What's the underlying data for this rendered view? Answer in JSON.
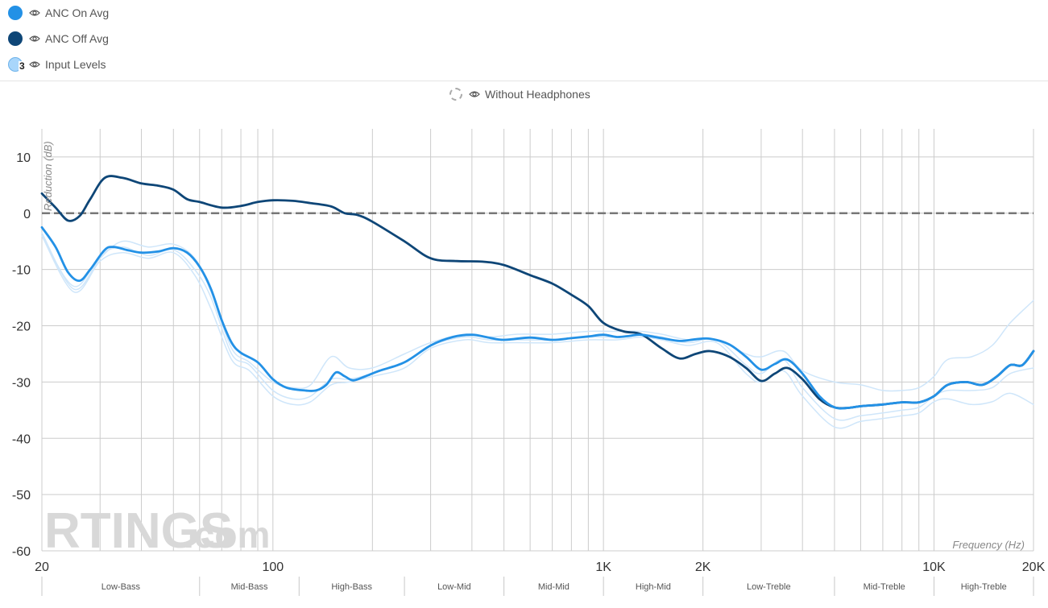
{
  "legend": {
    "items": [
      {
        "label": "ANC On Avg",
        "color": "#2391e6"
      },
      {
        "label": "ANC Off Avg",
        "color": "#0e4677"
      },
      {
        "label": "Input Levels",
        "color": "#a9d6fb",
        "count": "3"
      }
    ],
    "reference": {
      "label": "Without Headphones"
    }
  },
  "watermark": {
    "main": "RTINGS",
    "suffix": ".com"
  },
  "chart_data": {
    "type": "line",
    "title": "",
    "xlabel": "Frequency (Hz)",
    "ylabel": "Reduction (dB)",
    "xscale": "log",
    "xlim": [
      20,
      20000
    ],
    "ylim": [
      -60,
      15
    ],
    "grid": true,
    "x_ticks": [
      {
        "value": 20,
        "label": "20"
      },
      {
        "value": 100,
        "label": "100"
      },
      {
        "value": 1000,
        "label": "1K"
      },
      {
        "value": 2000,
        "label": "2K"
      },
      {
        "value": 10000,
        "label": "10K"
      },
      {
        "value": 20000,
        "label": "20K"
      }
    ],
    "y_ticks": [
      10,
      0,
      -10,
      -20,
      -30,
      -40,
      -50,
      -60
    ],
    "bands": [
      {
        "label": "Low-Bass",
        "from": 20,
        "to": 60
      },
      {
        "label": "Mid-Bass",
        "from": 60,
        "to": 120
      },
      {
        "label": "High-Bass",
        "from": 120,
        "to": 250
      },
      {
        "label": "Low-Mid",
        "from": 250,
        "to": 500
      },
      {
        "label": "Mid-Mid",
        "from": 500,
        "to": 1000
      },
      {
        "label": "High-Mid",
        "from": 1000,
        "to": 2000
      },
      {
        "label": "Low-Treble",
        "from": 2000,
        "to": 5000
      },
      {
        "label": "Mid-Treble",
        "from": 5000,
        "to": 10000
      },
      {
        "label": "High-Treble",
        "from": 10000,
        "to": 20000
      }
    ],
    "series": [
      {
        "name": "Without Headphones",
        "color": "#777777",
        "style": "dashed",
        "width": 2.5,
        "points": [
          [
            20,
            0
          ],
          [
            20000,
            0
          ]
        ]
      },
      {
        "name": "Input Level 1",
        "color": "#cfe6fa",
        "style": "solid",
        "width": 1.5,
        "points": [
          [
            20,
            -3.5
          ],
          [
            25,
            -13.5
          ],
          [
            30,
            -8
          ],
          [
            35,
            -5
          ],
          [
            42,
            -6
          ],
          [
            50,
            -5.5
          ],
          [
            58,
            -8
          ],
          [
            65,
            -14
          ],
          [
            75,
            -24
          ],
          [
            85,
            -26.5
          ],
          [
            100,
            -30
          ],
          [
            115,
            -31
          ],
          [
            130,
            -30.5
          ],
          [
            150,
            -25.5
          ],
          [
            170,
            -27.5
          ],
          [
            200,
            -27.5
          ],
          [
            250,
            -25
          ],
          [
            300,
            -23
          ],
          [
            380,
            -21.5
          ],
          [
            450,
            -22
          ],
          [
            550,
            -21.5
          ],
          [
            700,
            -21.5
          ],
          [
            900,
            -21
          ],
          [
            1100,
            -21
          ],
          [
            1300,
            -21
          ],
          [
            1500,
            -21.5
          ],
          [
            1800,
            -22.5
          ],
          [
            2200,
            -22.5
          ],
          [
            2700,
            -25
          ],
          [
            3000,
            -25.5
          ],
          [
            3500,
            -24.5
          ],
          [
            4000,
            -28
          ],
          [
            5000,
            -30
          ],
          [
            6000,
            -30.5
          ],
          [
            7000,
            -31.5
          ],
          [
            8000,
            -31.5
          ],
          [
            9000,
            -31
          ],
          [
            10000,
            -29
          ],
          [
            11000,
            -26
          ],
          [
            13000,
            -25.5
          ],
          [
            15000,
            -23.5
          ],
          [
            17000,
            -19.5
          ],
          [
            20000,
            -15.5
          ]
        ]
      },
      {
        "name": "Input Level 2",
        "color": "#cfe6fa",
        "style": "solid",
        "width": 1.5,
        "points": [
          [
            20,
            -4
          ],
          [
            25,
            -13
          ],
          [
            30,
            -7.5
          ],
          [
            35,
            -6
          ],
          [
            42,
            -7.5
          ],
          [
            50,
            -6.5
          ],
          [
            58,
            -10
          ],
          [
            65,
            -15
          ],
          [
            75,
            -25
          ],
          [
            85,
            -27
          ],
          [
            100,
            -31.5
          ],
          [
            115,
            -33
          ],
          [
            130,
            -32.5
          ],
          [
            150,
            -29.5
          ],
          [
            170,
            -29.5
          ],
          [
            200,
            -28.5
          ],
          [
            250,
            -26.5
          ],
          [
            300,
            -23.5
          ],
          [
            380,
            -22
          ],
          [
            450,
            -22.5
          ],
          [
            550,
            -22.5
          ],
          [
            700,
            -22.5
          ],
          [
            900,
            -22
          ],
          [
            1100,
            -22
          ],
          [
            1300,
            -21.5
          ],
          [
            1500,
            -22
          ],
          [
            1800,
            -23
          ],
          [
            2200,
            -22.5
          ],
          [
            2700,
            -27
          ],
          [
            3000,
            -28.5
          ],
          [
            3500,
            -26
          ],
          [
            4000,
            -31
          ],
          [
            5000,
            -36.5
          ],
          [
            6000,
            -36
          ],
          [
            7000,
            -35.5
          ],
          [
            8000,
            -35
          ],
          [
            9000,
            -34.5
          ],
          [
            10000,
            -32.5
          ],
          [
            11000,
            -31.5
          ],
          [
            13000,
            -31.5
          ],
          [
            15000,
            -31
          ],
          [
            17000,
            -28.5
          ],
          [
            20000,
            -27.5
          ]
        ]
      },
      {
        "name": "Input Level 3",
        "color": "#cfe6fa",
        "style": "solid",
        "width": 1.5,
        "points": [
          [
            20,
            -4
          ],
          [
            25,
            -14
          ],
          [
            30,
            -8.5
          ],
          [
            35,
            -7
          ],
          [
            42,
            -8
          ],
          [
            50,
            -7
          ],
          [
            58,
            -11
          ],
          [
            65,
            -17
          ],
          [
            75,
            -26
          ],
          [
            85,
            -28
          ],
          [
            100,
            -32.5
          ],
          [
            115,
            -34
          ],
          [
            130,
            -33.5
          ],
          [
            150,
            -30.5
          ],
          [
            170,
            -30
          ],
          [
            200,
            -29
          ],
          [
            250,
            -27.5
          ],
          [
            300,
            -24
          ],
          [
            380,
            -22.5
          ],
          [
            450,
            -23
          ],
          [
            550,
            -23
          ],
          [
            700,
            -23
          ],
          [
            900,
            -22.5
          ],
          [
            1100,
            -22.5
          ],
          [
            1300,
            -22
          ],
          [
            1500,
            -22.5
          ],
          [
            1800,
            -23.5
          ],
          [
            2200,
            -23
          ],
          [
            2700,
            -28.5
          ],
          [
            3000,
            -30
          ],
          [
            3500,
            -28
          ],
          [
            4000,
            -32.5
          ],
          [
            5000,
            -38
          ],
          [
            6000,
            -37
          ],
          [
            7000,
            -36.5
          ],
          [
            8000,
            -36
          ],
          [
            9000,
            -35.5
          ],
          [
            10000,
            -33.5
          ],
          [
            11000,
            -33
          ],
          [
            13000,
            -34
          ],
          [
            15000,
            -33.5
          ],
          [
            17000,
            -32
          ],
          [
            20000,
            -34
          ]
        ]
      },
      {
        "name": "ANC Off Avg",
        "color": "#0e4677",
        "style": "solid",
        "width": 2.8,
        "points": [
          [
            20,
            3.5
          ],
          [
            22,
            1
          ],
          [
            24,
            -1.3
          ],
          [
            26,
            -0.5
          ],
          [
            28,
            2.5
          ],
          [
            31,
            6.3
          ],
          [
            35,
            6.3
          ],
          [
            40,
            5.3
          ],
          [
            45,
            4.9
          ],
          [
            50,
            4.2
          ],
          [
            55,
            2.5
          ],
          [
            60,
            2
          ],
          [
            70,
            1
          ],
          [
            80,
            1.3
          ],
          [
            90,
            2
          ],
          [
            100,
            2.3
          ],
          [
            115,
            2.2
          ],
          [
            130,
            1.8
          ],
          [
            150,
            1.2
          ],
          [
            165,
            0
          ],
          [
            180,
            -0.3
          ],
          [
            200,
            -1.5
          ],
          [
            250,
            -5
          ],
          [
            300,
            -8
          ],
          [
            360,
            -8.5
          ],
          [
            430,
            -8.6
          ],
          [
            500,
            -9.2
          ],
          [
            600,
            -11
          ],
          [
            700,
            -12.5
          ],
          [
            800,
            -14.5
          ],
          [
            900,
            -16.5
          ],
          [
            1000,
            -19.5
          ],
          [
            1150,
            -21
          ],
          [
            1300,
            -21.5
          ],
          [
            1500,
            -24
          ],
          [
            1700,
            -25.8
          ],
          [
            1900,
            -25
          ],
          [
            2100,
            -24.5
          ],
          [
            2400,
            -25.5
          ],
          [
            2700,
            -27.5
          ],
          [
            3000,
            -29.8
          ],
          [
            3300,
            -28.5
          ],
          [
            3600,
            -27.5
          ],
          [
            4000,
            -29.5
          ],
          [
            4500,
            -33
          ],
          [
            5000,
            -34.5
          ],
          [
            5500,
            -34.6
          ],
          [
            6000,
            -34.3
          ],
          [
            7000,
            -34
          ],
          [
            8000,
            -33.6
          ],
          [
            9000,
            -33.6
          ],
          [
            10000,
            -32.5
          ],
          [
            11000,
            -30.5
          ],
          [
            12500,
            -30
          ],
          [
            14000,
            -30.5
          ],
          [
            15500,
            -29
          ],
          [
            17000,
            -27
          ],
          [
            18500,
            -27
          ],
          [
            20000,
            -24.5
          ]
        ]
      },
      {
        "name": "ANC On Avg",
        "color": "#2391e6",
        "style": "solid",
        "width": 2.8,
        "points": [
          [
            20,
            -2.5
          ],
          [
            22,
            -6
          ],
          [
            24,
            -10.5
          ],
          [
            26,
            -12
          ],
          [
            28,
            -10
          ],
          [
            31,
            -6.5
          ],
          [
            33,
            -6
          ],
          [
            36,
            -6.5
          ],
          [
            40,
            -7
          ],
          [
            45,
            -6.8
          ],
          [
            50,
            -6.2
          ],
          [
            55,
            -7
          ],
          [
            60,
            -9.5
          ],
          [
            65,
            -13.5
          ],
          [
            70,
            -19
          ],
          [
            75,
            -23
          ],
          [
            80,
            -24.8
          ],
          [
            90,
            -26.5
          ],
          [
            100,
            -29.5
          ],
          [
            110,
            -31
          ],
          [
            125,
            -31.5
          ],
          [
            135,
            -31.5
          ],
          [
            145,
            -30.5
          ],
          [
            155,
            -28.3
          ],
          [
            165,
            -29
          ],
          [
            175,
            -29.7
          ],
          [
            190,
            -29
          ],
          [
            210,
            -28
          ],
          [
            250,
            -26.5
          ],
          [
            300,
            -23.5
          ],
          [
            350,
            -22
          ],
          [
            400,
            -21.6
          ],
          [
            450,
            -22.1
          ],
          [
            500,
            -22.5
          ],
          [
            600,
            -22.1
          ],
          [
            700,
            -22.5
          ],
          [
            800,
            -22.2
          ],
          [
            900,
            -21.9
          ],
          [
            1000,
            -21.6
          ],
          [
            1100,
            -22
          ],
          [
            1200,
            -21.8
          ],
          [
            1300,
            -21.6
          ],
          [
            1500,
            -22.2
          ],
          [
            1700,
            -22.7
          ],
          [
            1900,
            -22.4
          ],
          [
            2100,
            -22.3
          ],
          [
            2400,
            -23.3
          ],
          [
            2700,
            -25.5
          ],
          [
            3000,
            -27.8
          ],
          [
            3300,
            -26.8
          ],
          [
            3600,
            -26
          ],
          [
            4000,
            -28.5
          ],
          [
            4500,
            -32.5
          ],
          [
            5000,
            -34.5
          ],
          [
            5500,
            -34.6
          ],
          [
            6000,
            -34.3
          ],
          [
            7000,
            -34
          ],
          [
            8000,
            -33.6
          ],
          [
            9000,
            -33.6
          ],
          [
            10000,
            -32.5
          ],
          [
            11000,
            -30.5
          ],
          [
            12500,
            -30
          ],
          [
            14000,
            -30.5
          ],
          [
            15500,
            -29
          ],
          [
            17000,
            -27
          ],
          [
            18500,
            -27
          ],
          [
            20000,
            -24.5
          ]
        ]
      }
    ]
  }
}
